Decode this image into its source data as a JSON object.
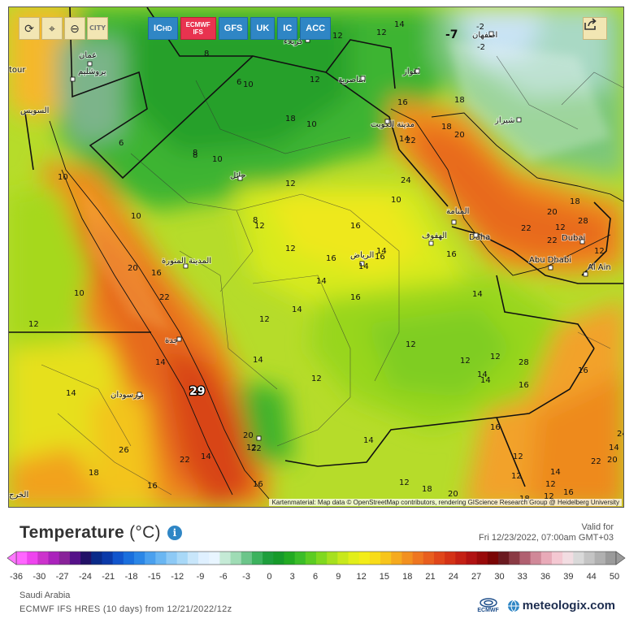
{
  "toolbar": {
    "buttons": [
      {
        "name": "reload-icon",
        "glyph": "⟳"
      },
      {
        "name": "location-pin-icon",
        "glyph": "⌖"
      },
      {
        "name": "zoom-icon",
        "glyph": "⊖"
      },
      {
        "name": "city-toggle",
        "label": "CITY"
      }
    ],
    "models": [
      {
        "label": "IC",
        "sub": "HD",
        "active": false
      },
      {
        "label": "ECMWF",
        "sub": "IFS",
        "active": true
      },
      {
        "label": "GFS",
        "active": false
      },
      {
        "label": "UK",
        "active": false
      },
      {
        "label": "IC",
        "active": false
      },
      {
        "label": "ACC",
        "active": false
      }
    ],
    "share_icon": "share-icon"
  },
  "map": {
    "region_labels": [
      {
        "text": "عمان"
      },
      {
        "text": "يروشليم"
      },
      {
        "text": "السويس"
      },
      {
        "text": "كربلاء"
      },
      {
        "text": "الناصرية"
      },
      {
        "text": "اهواز"
      },
      {
        "text": "اصفهان"
      },
      {
        "text": "شيراز"
      },
      {
        "text": "مدينة الكويت"
      },
      {
        "text": "حائل"
      },
      {
        "text": "المنامة"
      },
      {
        "text": "الهفوف"
      },
      {
        "text": "Doha"
      },
      {
        "text": "Dubai"
      },
      {
        "text": "Abu Dhabi"
      },
      {
        "text": "Al Ain"
      },
      {
        "text": "الرياض"
      },
      {
        "text": "المدينة المنورة"
      },
      {
        "text": "جدة"
      },
      {
        "text": "بورسودان"
      },
      {
        "text": "الخرج"
      },
      {
        "text": "tour"
      }
    ],
    "extreme_labels": [
      {
        "text": "-7"
      },
      {
        "text": "29"
      }
    ],
    "value_labels": [
      "12",
      "12",
      "14",
      "-2",
      "-2",
      "8",
      "6",
      "12",
      "18",
      "10",
      "10",
      "8",
      "16",
      "8",
      "6",
      "10",
      "12",
      "14",
      "18",
      "20",
      "10",
      "8",
      "16",
      "10",
      "14",
      "18",
      "10",
      "12",
      "14",
      "16",
      "14",
      "16",
      "12",
      "16",
      "12",
      "14",
      "20",
      "16",
      "22",
      "10",
      "14",
      "12",
      "14",
      "14",
      "12",
      "22",
      "26",
      "14",
      "12",
      "16",
      "12",
      "12",
      "12",
      "14",
      "14",
      "28",
      "16",
      "12",
      "12",
      "12",
      "12",
      "14",
      "14",
      "16",
      "20",
      "22",
      "16",
      "18",
      "22",
      "28",
      "20",
      "16",
      "14",
      "12",
      "18",
      "20",
      "18",
      "16",
      "22",
      "24",
      "20",
      "22",
      "18",
      "12",
      "12",
      "24",
      "22",
      "16",
      "14"
    ],
    "attribution": "Kartenmaterial: Map data © OpenStreetMap contributors, rendering GIScience Research Group @ Heidelberg University"
  },
  "legend": {
    "title": "Temperature",
    "unit": "(°C)",
    "info_icon": "info-icon",
    "valid_label": "Valid for",
    "valid_time": "Fri 12/23/2022, 07:00am GMT+03",
    "ticks": [
      "-36",
      "-30",
      "-27",
      "-24",
      "-21",
      "-18",
      "-15",
      "-12",
      "-9",
      "-6",
      "-3",
      "0",
      "3",
      "6",
      "9",
      "12",
      "15",
      "18",
      "21",
      "24",
      "27",
      "30",
      "33",
      "36",
      "39",
      "44",
      "50"
    ],
    "colors": [
      "#ff66ff",
      "#ee44ee",
      "#cc33cc",
      "#aa22bb",
      "#882299",
      "#551188",
      "#221166",
      "#0a2a88",
      "#0b3aa8",
      "#1155cc",
      "#1a6fdd",
      "#2b86e6",
      "#4aa0ee",
      "#6ab6f2",
      "#8dc9f5",
      "#a8d8f7",
      "#c8e6fa",
      "#dff0ff",
      "#e8f5ff",
      "#c5ead6",
      "#9fdcb5",
      "#6cc58a",
      "#3db25e",
      "#1e9e3c",
      "#169a2a",
      "#22aa22",
      "#3bbd28",
      "#5ccc22",
      "#80d81f",
      "#a6e01e",
      "#c8e81c",
      "#e2ee1a",
      "#f3ec18",
      "#f8dc1a",
      "#f7c51c",
      "#f5aa1e",
      "#f2901f",
      "#ee7620",
      "#e85e1e",
      "#e0461a",
      "#d43216",
      "#c42014",
      "#b01212",
      "#980a0a",
      "#7a0505",
      "#6a1a20",
      "#8a3a44",
      "#b06070",
      "#d08898",
      "#e8aab8",
      "#f4c8d2",
      "#f2dde2",
      "#d9d9d9",
      "#c4c4c4",
      "#b0b0b0",
      "#9a9a9a"
    ]
  },
  "footer": {
    "region": "Saudi Arabia",
    "model_line": "ECMWF IFS HRES (10 days) from 12/21/2022/12z",
    "ecmwf_logo": "ECMWF",
    "brand": "meteologix.com"
  }
}
